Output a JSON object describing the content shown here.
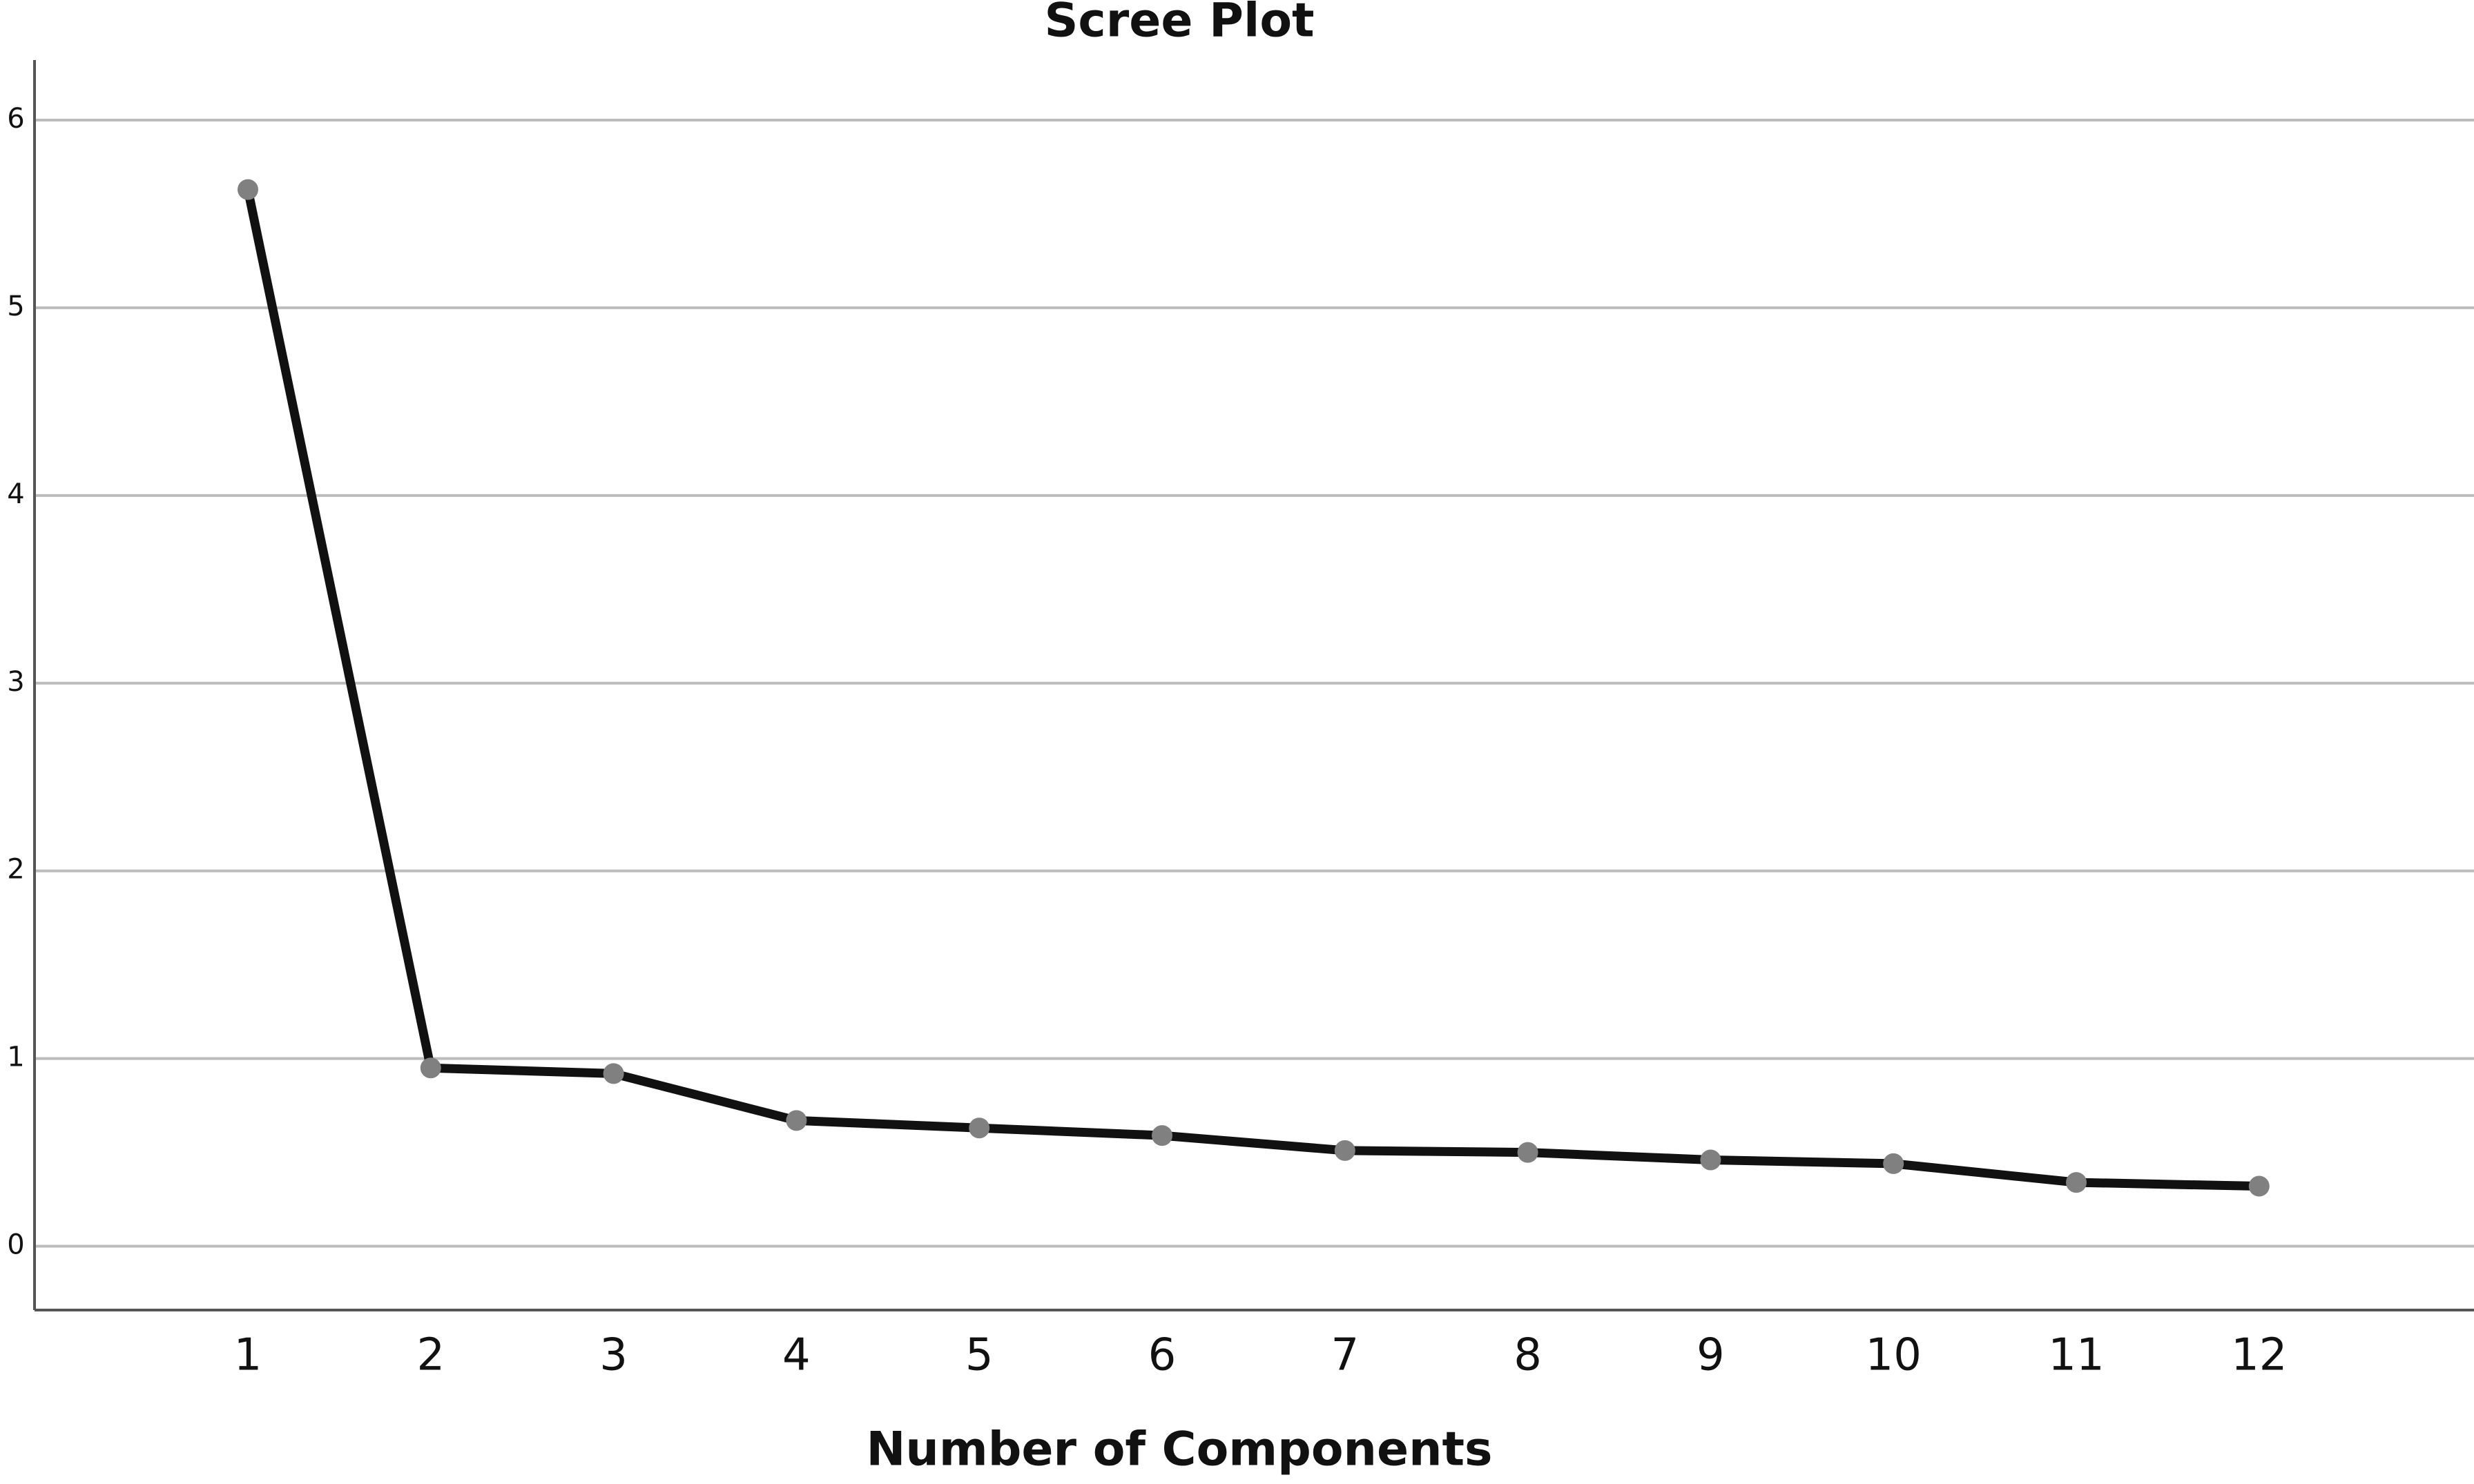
{
  "chart_data": {
    "type": "line",
    "title": "Scree Plot",
    "x_label": "Number of Components",
    "categories": [
      "1",
      "2",
      "3",
      "4",
      "5",
      "6",
      "7",
      "8",
      "9",
      "10",
      "11",
      "12"
    ],
    "series": [
      {
        "color": "#111111",
        "marker_color": "#808080",
        "values": [
          5.63,
          0.95,
          0.92,
          0.67,
          0.63,
          0.59,
          0.51,
          0.5,
          0.46,
          0.44,
          0.34,
          0.32
        ]
      }
    ],
    "ylim": [
      -0.34,
      6.32
    ],
    "yticks": [
      0,
      1,
      2,
      3,
      4,
      5,
      6
    ],
    "grid": true
  }
}
